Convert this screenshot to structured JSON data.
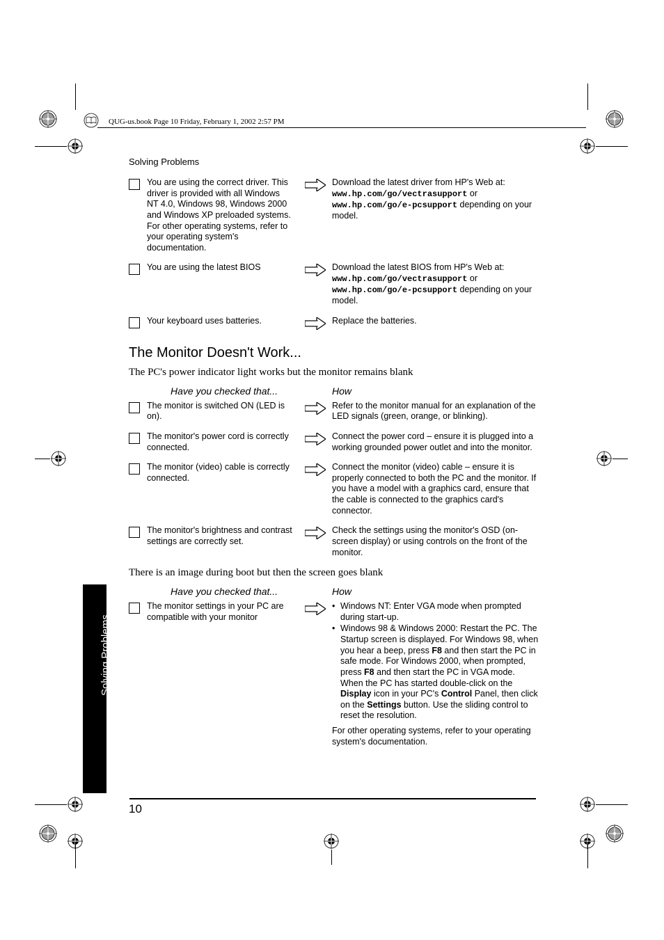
{
  "header": {
    "text": "QUG-us.book  Page 10  Friday, February 1, 2002  2:57 PM"
  },
  "running_head": "Solving Problems",
  "side_tab": "Solving Problems",
  "page_number": "10",
  "rows_top": [
    {
      "left": "You are using the correct driver. This driver is provided with all Windows NT 4.0, Windows 98, Windows 2000 and Windows XP preloaded systems. For other operating systems, refer to your operating system's documentation.",
      "right_pre": "Download the latest driver from HP's Web at:",
      "right_mono1": "www.hp.com/go/vectrasupport",
      "right_or": " or ",
      "right_mono2": "www.hp.com/go/e-pcsupport",
      "right_post": " depending on your model."
    },
    {
      "left": "You are using the latest BIOS",
      "right_pre": "Download the latest BIOS from HP's Web at:",
      "right_mono1": "www.hp.com/go/vectrasupport",
      "right_or": " or ",
      "right_mono2": "www.hp.com/go/e-pcsupport",
      "right_post": " depending on your model."
    },
    {
      "left": "Your keyboard uses batteries.",
      "right_simple": "Replace the batteries."
    }
  ],
  "section1": {
    "title": "The Monitor Doesn't Work...",
    "sub": "The PC's power indicator light works but the monitor remains blank",
    "header_left": "Have you checked that...",
    "header_right": "How",
    "rows": [
      {
        "left": "The monitor is switched ON (LED is on).",
        "right": "Refer to the monitor manual for an explanation of the LED signals (green, orange, or blinking)."
      },
      {
        "left": "The monitor's power cord is correctly connected.",
        "right": "Connect the power cord – ensure it is plugged into a working grounded power outlet and into the monitor."
      },
      {
        "left": "The monitor (video) cable is correctly connected.",
        "right": "Connect the monitor (video) cable – ensure it is properly connected to both the PC and the monitor. If you have a model with a graphics card, ensure that the cable is connected to the graphics card's connector."
      },
      {
        "left": "The monitor's brightness and contrast settings are correctly set.",
        "right": "Check the settings using the monitor's OSD (on-screen display) or using controls on the front of the monitor."
      }
    ]
  },
  "section2": {
    "sub": "There is an image during boot but then the screen goes blank",
    "header_left": "Have you checked that...",
    "header_right": "How",
    "row": {
      "left": "The monitor settings in your PC are compatible with your monitor",
      "bullets": [
        "Windows NT: Enter VGA mode when prompted during start-up.",
        {
          "pre": "Windows 98 & Windows 2000: Restart the PC. The Startup screen is displayed. For Windows 98, when you hear a beep, press ",
          "b1": "F8",
          "mid1": " and then start the PC in safe mode. For Windows 2000, when prompted, press ",
          "b2": "F8",
          "mid2": " and then start the PC in VGA mode. When the PC has started double-click on the ",
          "b3": "Display",
          "mid3": " icon in your PC's ",
          "b4": "Control",
          "mid4": " Panel, then click on the ",
          "b5": "Settings",
          "mid5": " button. Use the sliding control to reset the resolution."
        }
      ],
      "tail": "For other operating systems, refer to your operating system's documentation."
    }
  }
}
